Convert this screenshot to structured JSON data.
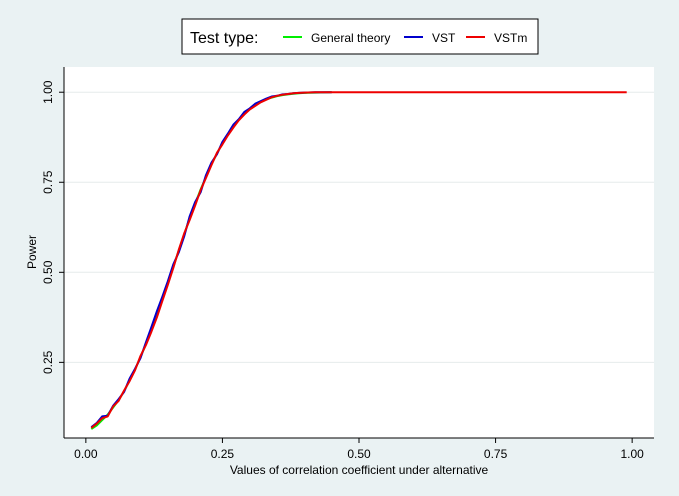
{
  "chart_data": {
    "type": "line",
    "title": "",
    "xlabel": "Values of correlation coefficient under alternative",
    "ylabel": "Power",
    "xlim": [
      -0.04,
      1.04
    ],
    "ylim": [
      0.04,
      1.07
    ],
    "x_ticks": [
      0,
      0.25,
      0.5,
      0.75,
      1
    ],
    "x_tick_labels": [
      "0.00",
      "0.25",
      "0.50",
      "0.75",
      "1.00"
    ],
    "y_ticks": [
      0.25,
      0.5,
      0.75,
      1
    ],
    "y_tick_labels": [
      "0.25",
      "0.50",
      "0.75",
      "1.00"
    ],
    "grid": true,
    "legend": {
      "title": "Test type:",
      "position": "top-center",
      "entries": [
        "General theory",
        "VST",
        "VSTm"
      ]
    },
    "x": [
      0.01,
      0.02,
      0.03,
      0.04,
      0.05,
      0.06,
      0.07,
      0.08,
      0.09,
      0.1,
      0.11,
      0.12,
      0.13,
      0.14,
      0.15,
      0.16,
      0.17,
      0.18,
      0.19,
      0.2,
      0.21,
      0.22,
      0.23,
      0.24,
      0.25,
      0.26,
      0.27,
      0.28,
      0.29,
      0.3,
      0.31,
      0.32,
      0.33,
      0.34,
      0.35,
      0.36,
      0.37,
      0.38,
      0.39,
      0.4,
      0.42,
      0.45
    ],
    "series": [
      {
        "name": "General theory",
        "color": "#00ee00",
        "values": [
          0.065,
          0.075,
          0.09,
          0.105,
          0.125,
          0.145,
          0.17,
          0.2,
          0.23,
          0.265,
          0.3,
          0.34,
          0.38,
          0.425,
          0.47,
          0.515,
          0.56,
          0.605,
          0.65,
          0.69,
          0.73,
          0.765,
          0.8,
          0.83,
          0.858,
          0.883,
          0.905,
          0.924,
          0.94,
          0.953,
          0.964,
          0.973,
          0.98,
          0.985,
          0.989,
          0.992,
          0.994,
          0.996,
          0.997,
          0.998,
          0.999,
          1.0
        ],
        "xmax": 0.45
      },
      {
        "name": "VST",
        "color": "#0000cc",
        "values": [
          0.07,
          0.082,
          0.1,
          0.102,
          0.13,
          0.148,
          0.168,
          0.205,
          0.232,
          0.262,
          0.305,
          0.348,
          0.392,
          0.432,
          0.475,
          0.522,
          0.555,
          0.6,
          0.655,
          0.695,
          0.722,
          0.77,
          0.805,
          0.828,
          0.862,
          0.885,
          0.91,
          0.925,
          0.945,
          0.955,
          0.968,
          0.975,
          0.982,
          0.988,
          0.99,
          0.994,
          0.995,
          0.997,
          0.998,
          0.999,
          1.0,
          1.0
        ],
        "xmax": 0.45
      },
      {
        "name": "VSTm",
        "color": "#ee0000",
        "values": [
          0.068,
          0.08,
          0.095,
          0.1,
          0.128,
          0.143,
          0.172,
          0.198,
          0.228,
          0.268,
          0.298,
          0.335,
          0.375,
          0.42,
          0.465,
          0.512,
          0.562,
          0.608,
          0.645,
          0.685,
          0.728,
          0.762,
          0.798,
          0.832,
          0.855,
          0.88,
          0.902,
          0.922,
          0.938,
          0.952,
          0.962,
          0.972,
          0.979,
          0.986,
          0.99,
          0.993,
          0.995,
          0.997,
          0.998,
          0.999,
          1.0,
          1.0
        ],
        "xmax": 0.99
      }
    ]
  }
}
